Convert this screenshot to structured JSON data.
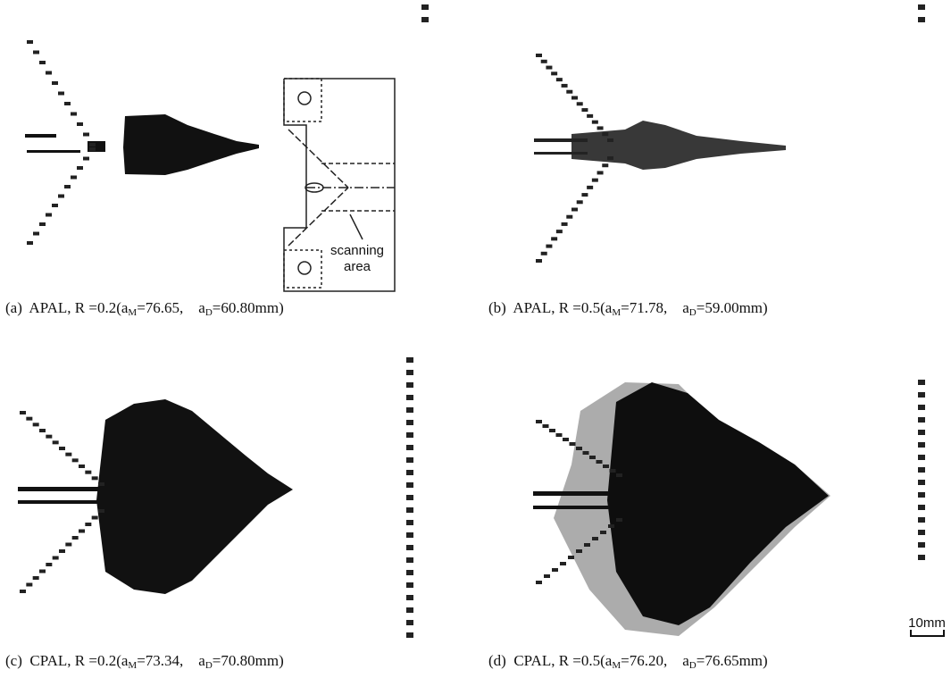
{
  "panels": [
    {
      "caption": [
        "(a)  APAL, R =0.2(a",
        "M",
        "=76.65,    a",
        "D",
        "=60.80mm)"
      ]
    },
    {
      "caption": [
        "(b)  APAL, R =0.5(a",
        "M",
        "=71.78,    a",
        "D",
        "=59.00mm)"
      ]
    },
    {
      "caption": [
        "(c)  CPAL, R =0.2(a",
        "M",
        "=73.34,    a",
        "D",
        "=70.80mm)"
      ]
    },
    {
      "caption": [
        "(d)  CPAL, R =0.5(a",
        "M",
        "=76.20,    a",
        "D",
        "=76.65mm)"
      ]
    }
  ],
  "diagram": {
    "label_line1": "scanning",
    "label_line2": "area"
  },
  "scale_bar": "10mm"
}
